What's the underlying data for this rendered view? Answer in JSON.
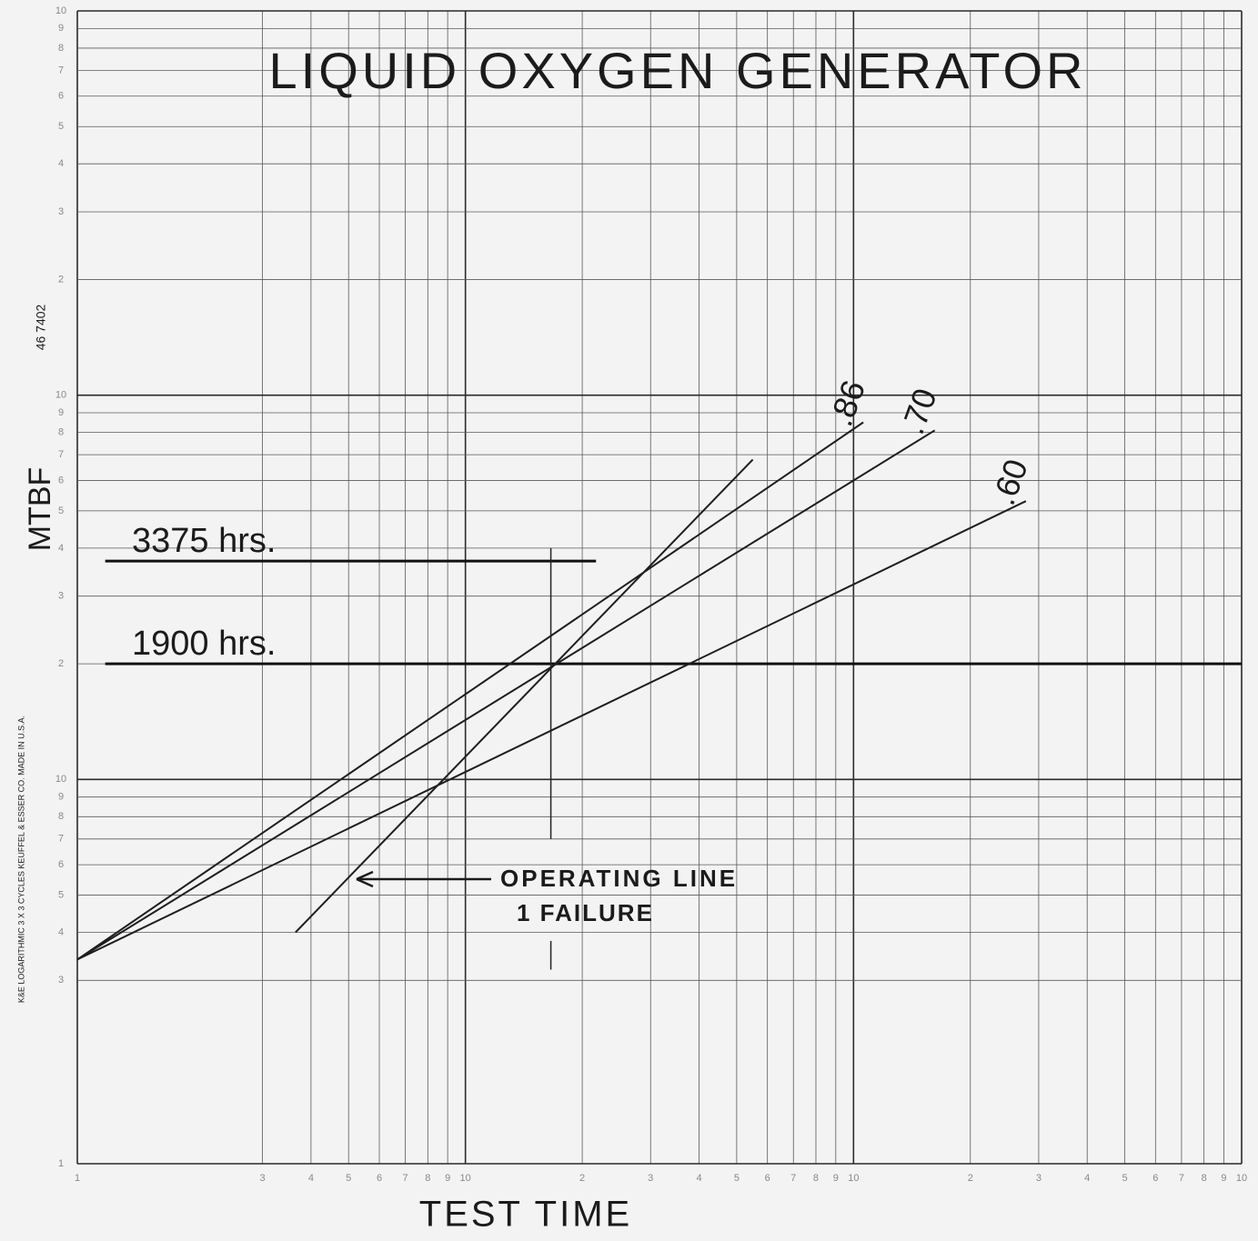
{
  "chart_data": {
    "type": "line",
    "title": "LIQUID OXYGEN GENERATOR",
    "x_label": "TEST TIME",
    "y_label": "MTBF",
    "side_notes": [
      "46 7402",
      "K&E LOGARITHMIC 3 X 3 CYCLES KEUFFEL & ESSER CO. MADE IN U.S.A."
    ],
    "log_x": true,
    "log_y": true,
    "grid": true,
    "xlim": [
      1,
      1000
    ],
    "ylim": [
      1,
      1000
    ],
    "xticks": [
      1,
      3,
      4,
      5,
      6,
      7,
      8,
      9,
      10,
      {
        "value": 20,
        "label": "2"
      },
      {
        "value": 30,
        "label": "3"
      },
      {
        "value": 40,
        "label": "4"
      },
      {
        "value": 50,
        "label": "5"
      },
      {
        "value": 60,
        "label": "6"
      },
      {
        "value": 70,
        "label": "7"
      },
      {
        "value": 80,
        "label": "8"
      },
      {
        "value": 90,
        "label": "9"
      },
      {
        "value": 100,
        "label": "10"
      },
      {
        "value": 200,
        "label": "2"
      },
      {
        "value": 300,
        "label": "3"
      },
      {
        "value": 400,
        "label": "4"
      },
      {
        "value": 500,
        "label": "5"
      },
      {
        "value": 600,
        "label": "6"
      },
      {
        "value": 700,
        "label": "7"
      },
      {
        "value": 800,
        "label": "8"
      },
      {
        "value": 900,
        "label": "9"
      },
      {
        "value": 1000,
        "label": "10"
      }
    ],
    "yticks": [
      1,
      3,
      4,
      5,
      6,
      7,
      8,
      9,
      10,
      {
        "value": 20,
        "label": "2"
      },
      {
        "value": 30,
        "label": "3"
      },
      {
        "value": 40,
        "label": "4"
      },
      {
        "value": 50,
        "label": "5"
      },
      {
        "value": 60,
        "label": "6"
      },
      {
        "value": 70,
        "label": "7"
      },
      {
        "value": 80,
        "label": "8"
      },
      {
        "value": 90,
        "label": "9"
      },
      {
        "value": 100,
        "label": "10"
      },
      {
        "value": 200,
        "label": "2"
      },
      {
        "value": 300,
        "label": "3"
      },
      {
        "value": 400,
        "label": "4"
      },
      {
        "value": 500,
        "label": "5"
      },
      {
        "value": 600,
        "label": "6"
      },
      {
        "value": 700,
        "label": "7"
      },
      {
        "value": 800,
        "label": "8"
      },
      {
        "value": 900,
        "label": "9"
      },
      {
        "value": 1000,
        "label": "10"
      }
    ],
    "series": [
      {
        "name": ".86",
        "color": "#1e1e1e",
        "x": [
          1,
          106
        ],
        "values": [
          3.4,
          85
        ]
      },
      {
        "name": ".70",
        "color": "#1e1e1e",
        "x": [
          1,
          162
        ],
        "values": [
          3.4,
          81
        ]
      },
      {
        "name": ".60",
        "color": "#1e1e1e",
        "x": [
          1,
          278
        ],
        "values": [
          3.4,
          53
        ]
      },
      {
        "name": "OPERATING LINE",
        "note": "1 FAILURE",
        "color": "#1e1e1e",
        "x": [
          3.65,
          55
        ],
        "values": [
          4,
          68
        ]
      }
    ],
    "annotations": [
      {
        "text": "3375 hrs.",
        "y": 37,
        "x_range": [
          1.18,
          21.7
        ]
      },
      {
        "text": "1900 hrs.",
        "y": 20,
        "x_range": [
          1.18,
          1000
        ]
      }
    ],
    "marker_x": 16.6
  }
}
